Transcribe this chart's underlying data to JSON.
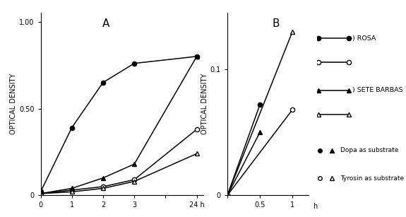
{
  "panel_A": {
    "title": "A",
    "ylabel": "OPTICAL DENSITY",
    "x_positions": [
      0,
      1,
      2,
      3,
      4,
      5
    ],
    "xticklabels": [
      "0",
      "1",
      "2",
      "3",
      "",
      "24 h"
    ],
    "xlim": [
      0,
      5.2
    ],
    "ylim": [
      0,
      1.05
    ],
    "yticks": [
      0,
      0.5,
      1.0
    ],
    "series": {
      "rosa_dopa": {
        "x": [
          0,
          1,
          2,
          3,
          5
        ],
        "y": [
          0.02,
          0.39,
          0.65,
          0.76,
          0.8
        ]
      },
      "rosa_tyrosin": {
        "x": [
          0,
          1,
          2,
          3,
          5
        ],
        "y": [
          0.01,
          0.03,
          0.05,
          0.09,
          0.38
        ]
      },
      "sete_dopa": {
        "x": [
          0,
          1,
          2,
          3,
          5
        ],
        "y": [
          0.01,
          0.04,
          0.1,
          0.18,
          0.8
        ]
      },
      "sete_tyrosin": {
        "x": [
          0,
          1,
          2,
          3,
          5
        ],
        "y": [
          0.01,
          0.02,
          0.04,
          0.08,
          0.24
        ]
      }
    }
  },
  "panel_B": {
    "title": "B",
    "ylabel": "OPTICAL DENSITY",
    "xlim": [
      0,
      1.25
    ],
    "ylim": [
      0,
      0.145
    ],
    "yticks": [
      0,
      0.1
    ],
    "xtick_positions": [
      0,
      0.5,
      1.0
    ],
    "xticklabels": [
      "",
      "0.5",
      "1"
    ],
    "xlabel_text": "h",
    "series": {
      "rosa_dopa": {
        "x": [
          0,
          0.5
        ],
        "y": [
          0,
          0.072
        ]
      },
      "rosa_tyrosin": {
        "x": [
          0,
          1.0
        ],
        "y": [
          0,
          0.068
        ]
      },
      "sete_dopa": {
        "x": [
          0,
          0.5
        ],
        "y": [
          0,
          0.05
        ]
      },
      "sete_tyrosin": {
        "x": [
          0,
          1.0
        ],
        "y": [
          0,
          0.13
        ]
      }
    }
  },
  "legend": {
    "rosa_label": ") ROSA",
    "sete_label": ") SETE BARBAS",
    "dopa_label": "Dopa as substrate",
    "tyrosin_label": "Tyrosin as substrate"
  }
}
